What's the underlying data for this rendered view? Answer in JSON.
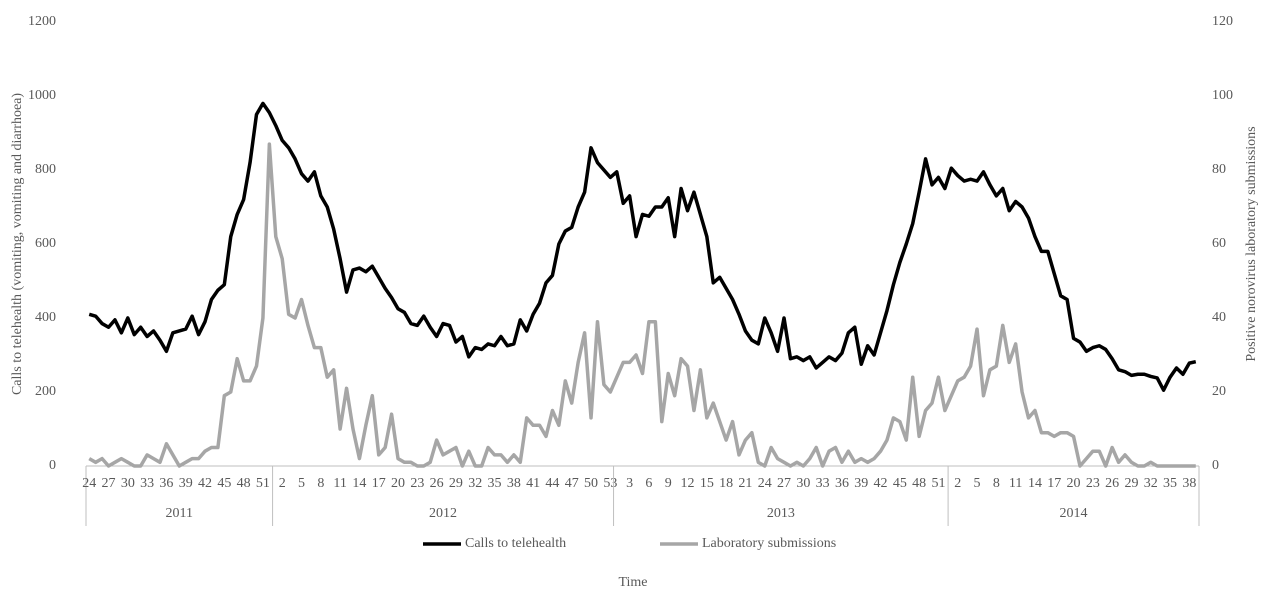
{
  "chart_data": {
    "type": "line",
    "y_label": "Calls to telehealth (vomiting, vomiting and diarrhoea)",
    "y2_label": "Positive norovirus laboratory submissions",
    "x_label": "Time",
    "groups": [
      {
        "label": "2011",
        "categories": [
          "24",
          null,
          null,
          "27",
          null,
          null,
          "30",
          null,
          null,
          "33",
          null,
          null,
          "36",
          null,
          null,
          "39",
          null,
          null,
          "42",
          null,
          null,
          "45",
          null,
          null,
          "48",
          null,
          null,
          "51",
          null
        ]
      },
      {
        "label": "2012",
        "categories": [
          null,
          "2",
          null,
          null,
          "5",
          null,
          null,
          "8",
          null,
          null,
          "11",
          null,
          null,
          "14",
          null,
          null,
          "17",
          null,
          null,
          "20",
          null,
          null,
          "23",
          null,
          null,
          "26",
          null,
          null,
          "29",
          null,
          null,
          "32",
          null,
          null,
          "35",
          null,
          null,
          "38",
          null,
          null,
          "41",
          null,
          null,
          "44",
          null,
          null,
          "47",
          null,
          null,
          "50",
          null,
          null,
          "53"
        ]
      },
      {
        "label": "2013",
        "categories": [
          null,
          null,
          "3",
          null,
          null,
          "6",
          null,
          null,
          "9",
          null,
          null,
          "12",
          null,
          null,
          "15",
          null,
          null,
          "18",
          null,
          null,
          "21",
          null,
          null,
          "24",
          null,
          null,
          "27",
          null,
          null,
          "30",
          null,
          null,
          "33",
          null,
          null,
          "36",
          null,
          null,
          "39",
          null,
          null,
          "42",
          null,
          null,
          "45",
          null,
          null,
          "48",
          null,
          null,
          "51",
          null
        ]
      },
      {
        "label": "2014",
        "categories": [
          null,
          "2",
          null,
          null,
          "5",
          null,
          null,
          "8",
          null,
          null,
          "11",
          null,
          null,
          "14",
          null,
          null,
          "17",
          null,
          null,
          "20",
          null,
          null,
          "23",
          null,
          null,
          "26",
          null,
          null,
          "29",
          null,
          null,
          "32",
          null,
          null,
          "35",
          null,
          null,
          "38",
          null
        ]
      }
    ],
    "series": [
      {
        "name": "Calls to telehealth",
        "color": "#000000",
        "values": [
          410,
          405,
          385,
          375,
          395,
          360,
          400,
          355,
          375,
          350,
          365,
          340,
          310,
          360,
          365,
          370,
          405,
          355,
          390,
          450,
          475,
          490,
          620,
          680,
          720,
          820,
          950,
          980,
          955,
          920,
          880,
          860,
          830,
          790,
          770,
          795,
          730,
          700,
          640,
          560,
          470,
          530,
          535,
          525,
          540,
          510,
          480,
          455,
          425,
          415,
          385,
          380,
          405,
          375,
          350,
          385,
          380,
          335,
          350,
          295,
          320,
          315,
          330,
          325,
          350,
          325,
          330,
          395,
          365,
          410,
          440,
          495,
          515,
          600,
          635,
          645,
          700,
          740,
          860,
          820,
          800,
          780,
          795,
          710,
          730,
          620,
          680,
          675,
          700,
          700,
          725,
          620,
          750,
          690,
          740,
          680,
          620,
          495,
          510,
          480,
          450,
          410,
          365,
          340,
          330,
          400,
          360,
          310,
          400,
          290,
          295,
          285,
          295,
          265,
          280,
          295,
          285,
          305,
          360,
          375,
          275,
          325,
          300,
          360,
          420,
          490,
          550,
          600,
          655,
          740,
          830,
          760,
          780,
          750,
          805,
          785,
          770,
          775,
          770,
          795,
          760,
          730,
          750,
          690,
          715,
          700,
          670,
          620,
          580,
          580,
          520,
          460,
          450,
          345,
          335,
          310,
          320,
          325,
          315,
          290,
          260,
          255,
          245,
          248,
          248,
          242,
          238,
          205,
          240,
          265,
          248,
          278,
          282
        ]
      },
      {
        "name": "Laboratory submissions",
        "color": "#a6a6a6",
        "axis": "y2",
        "values": [
          2,
          1,
          2,
          0,
          1,
          2,
          1,
          0,
          0,
          3,
          2,
          1,
          6,
          3,
          0,
          1,
          2,
          2,
          4,
          5,
          5,
          19,
          20,
          29,
          23,
          23,
          27,
          40,
          87,
          62,
          56,
          41,
          40,
          45,
          38,
          32,
          32,
          24,
          26,
          10,
          21,
          10,
          2,
          11,
          19,
          3,
          5,
          14,
          2,
          1,
          1,
          0,
          0,
          1,
          7,
          3,
          4,
          5,
          0,
          4,
          0,
          0,
          5,
          3,
          3,
          1,
          3,
          1,
          13,
          11,
          11,
          8,
          15,
          11,
          23,
          17,
          28,
          36,
          13,
          39,
          22,
          20,
          24,
          28,
          28,
          30,
          25,
          39,
          39,
          12,
          25,
          19,
          29,
          27,
          15,
          26,
          13,
          17,
          12,
          7,
          12,
          3,
          7,
          9,
          1,
          0,
          5,
          2,
          1,
          0,
          1,
          0,
          2,
          5,
          0,
          4,
          5,
          1,
          4,
          1,
          2,
          1,
          2,
          4,
          7,
          13,
          12,
          7,
          24,
          8,
          15,
          17,
          24,
          15,
          19,
          23,
          24,
          27,
          37,
          19,
          26,
          27,
          38,
          28,
          33,
          20,
          13,
          15,
          9,
          9,
          8,
          9,
          9,
          8,
          0,
          2,
          4,
          4,
          0,
          5,
          1,
          3,
          1,
          0,
          0,
          1,
          0,
          0,
          0,
          0,
          0,
          0,
          0
        ]
      }
    ],
    "ylim": [
      0,
      1200
    ],
    "yticks": [
      0,
      200,
      400,
      600,
      800,
      1000,
      1200
    ],
    "y2lim": [
      0,
      120
    ],
    "y2ticks": [
      0,
      20,
      40,
      60,
      80,
      100,
      120
    ],
    "legend": "bottom",
    "grid": false
  }
}
